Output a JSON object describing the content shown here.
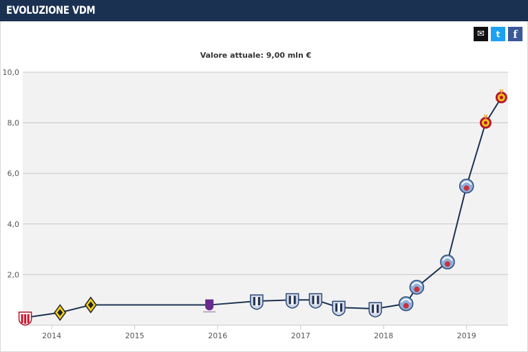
{
  "header": {
    "title": "EVOLUZIONE VDM"
  },
  "share": [
    {
      "name": "share-mail-button",
      "glyph": "✉",
      "color": "#111111"
    },
    {
      "name": "share-twitter-button",
      "glyph": "t",
      "color": "#1da1f2"
    },
    {
      "name": "share-facebook-button",
      "glyph": "f",
      "color": "#3b5998"
    }
  ],
  "chart_data": {
    "type": "line",
    "title": "Valore attuale: 9,00 mln €",
    "xlabel": "",
    "ylabel": "",
    "ylim": [
      0,
      10
    ],
    "xlim": [
      2013.65,
      2019.5
    ],
    "yticks": [
      {
        "value": 2,
        "label": "2,0"
      },
      {
        "value": 4,
        "label": "4,0"
      },
      {
        "value": 6,
        "label": "6,0"
      },
      {
        "value": 8,
        "label": "8,0"
      },
      {
        "value": 10,
        "label": "10,0"
      }
    ],
    "xticks": [
      {
        "value": 2014,
        "label": "2014"
      },
      {
        "value": 2015,
        "label": "2015"
      },
      {
        "value": 2016,
        "label": "2016"
      },
      {
        "value": 2017,
        "label": "2017"
      },
      {
        "value": 2018,
        "label": "2018"
      },
      {
        "value": 2019,
        "label": "2019"
      }
    ],
    "grid": true,
    "legend": "none",
    "line_color": "#1a3151",
    "series": [
      {
        "x": [
          2013.68,
          2014.1,
          2014.47,
          2015.9,
          2016.47,
          2016.9,
          2017.18,
          2017.46,
          2017.9,
          2018.27,
          2018.4,
          2018.77,
          2019.0,
          2019.23,
          2019.42
        ],
        "y": [
          0.3,
          0.5,
          0.8,
          0.8,
          0.95,
          1.0,
          1.0,
          0.7,
          0.65,
          0.85,
          1.5,
          2.5,
          5.5,
          8.0,
          9.0
        ],
        "club_icons": [
          "red-white-crest-icon",
          "yellow-black-crest-icon",
          "yellow-black-crest-icon",
          "purple-crest-icon",
          "blue-white-crest-icon",
          "blue-white-crest-icon",
          "blue-white-crest-icon",
          "blue-white-crest-icon",
          "blue-white-crest-icon",
          "blue-red-crest-icon",
          "blue-red-crest-icon",
          "blue-red-crest-icon",
          "blue-red-crest-icon",
          "red-yellow-crest-icon",
          "red-yellow-crest-icon"
        ]
      }
    ]
  }
}
